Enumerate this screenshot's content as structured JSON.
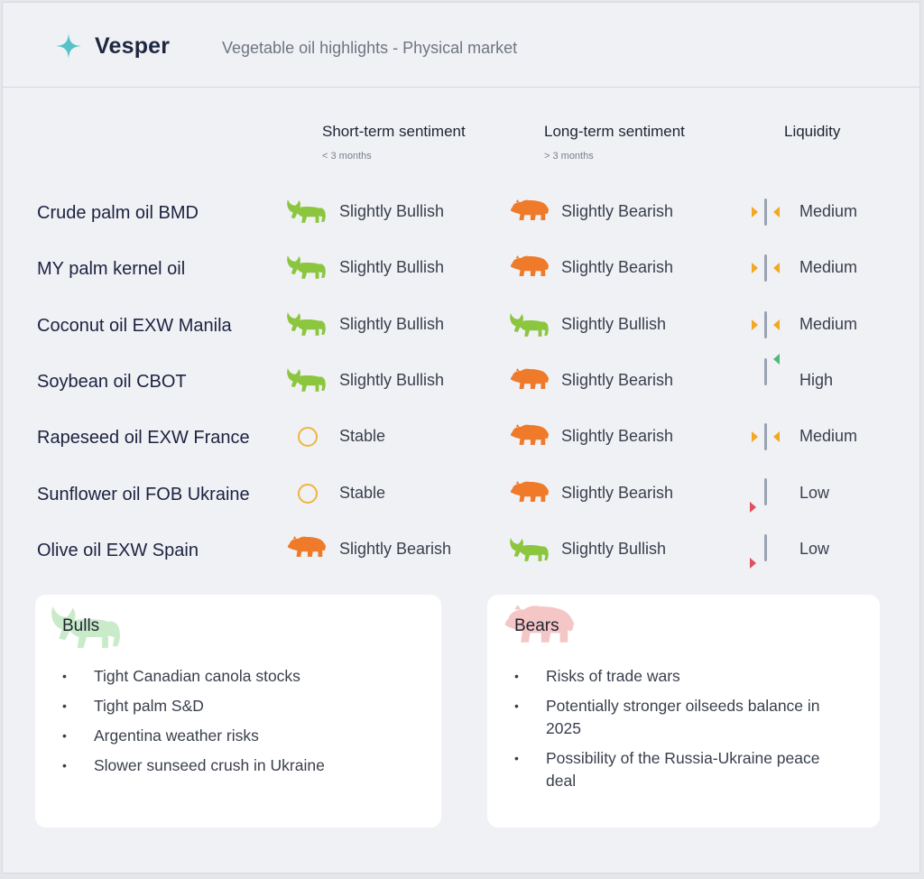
{
  "header": {
    "brand": "Vesper",
    "subtitle": "Vegetable oil highlights - Physical market",
    "logo_icon": "sparkle-icon"
  },
  "columns": {
    "short_term": {
      "label": "Short-term sentiment",
      "sub": "< 3 months"
    },
    "long_term": {
      "label": "Long-term sentiment",
      "sub": "> 3 months"
    },
    "liquidity": {
      "label": "Liquidity"
    }
  },
  "colors": {
    "bull": "#8cc63f",
    "bear": "#ef7a2a",
    "stable": "#f0b43c",
    "medium_arrow": "#f5a623",
    "high_arrow": "#4cba7a",
    "low_arrow": "#e0505a",
    "bar": "#9aa3b2"
  },
  "rows": [
    {
      "name": "Crude palm oil BMD",
      "short": {
        "icon": "bull-icon",
        "label": "Slightly Bullish"
      },
      "long": {
        "icon": "bear-icon",
        "label": "Slightly Bearish"
      },
      "liquidity": {
        "level": "medium",
        "label": "Medium"
      }
    },
    {
      "name": "MY palm kernel oil",
      "short": {
        "icon": "bull-icon",
        "label": "Slightly Bullish"
      },
      "long": {
        "icon": "bear-icon",
        "label": "Slightly Bearish"
      },
      "liquidity": {
        "level": "medium",
        "label": "Medium"
      }
    },
    {
      "name": "Coconut oil EXW Manila",
      "short": {
        "icon": "bull-icon",
        "label": "Slightly Bullish"
      },
      "long": {
        "icon": "bull-icon",
        "label": "Slightly Bullish"
      },
      "liquidity": {
        "level": "medium",
        "label": "Medium"
      }
    },
    {
      "name": "Soybean oil CBOT",
      "short": {
        "icon": "bull-icon",
        "label": "Slightly Bullish"
      },
      "long": {
        "icon": "bear-icon",
        "label": "Slightly Bearish"
      },
      "liquidity": {
        "level": "high",
        "label": "High"
      }
    },
    {
      "name": "Rapeseed oil EXW France",
      "short": {
        "icon": "stable-icon",
        "label": "Stable"
      },
      "long": {
        "icon": "bear-icon",
        "label": "Slightly Bearish"
      },
      "liquidity": {
        "level": "medium",
        "label": "Medium"
      }
    },
    {
      "name": "Sunflower oil FOB Ukraine",
      "short": {
        "icon": "stable-icon",
        "label": "Stable"
      },
      "long": {
        "icon": "bear-icon",
        "label": "Slightly Bearish"
      },
      "liquidity": {
        "level": "low",
        "label": "Low"
      }
    },
    {
      "name": "Olive oil EXW Spain",
      "short": {
        "icon": "bear-icon",
        "label": "Slightly Bearish"
      },
      "long": {
        "icon": "bull-icon",
        "label": "Slightly Bullish"
      },
      "liquidity": {
        "level": "low",
        "label": "Low"
      }
    }
  ],
  "bulls": {
    "title": "Bulls",
    "icon": "bull-icon",
    "items": [
      "Tight Canadian canola stocks",
      "Tight palm S&D",
      "Argentina weather risks",
      "Slower sunseed crush in Ukraine"
    ]
  },
  "bears": {
    "title": "Bears",
    "icon": "bear-icon",
    "items": [
      "Risks of trade wars",
      "Potentially stronger oilseeds balance in 2025",
      "Possibility of the Russia-Ukraine peace deal"
    ]
  }
}
